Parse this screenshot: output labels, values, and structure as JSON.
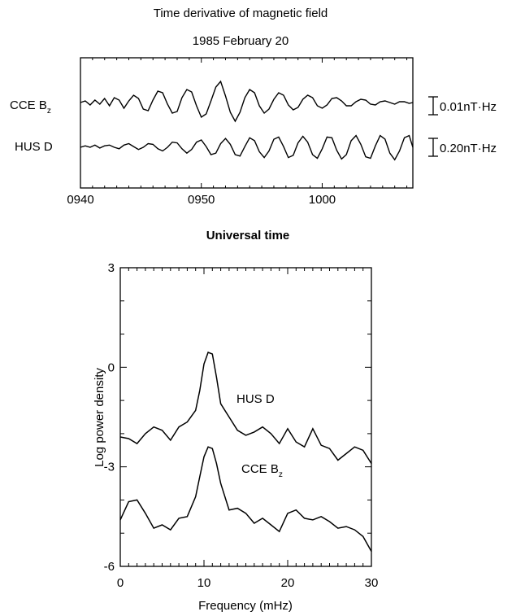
{
  "chart_data": [
    {
      "type": "line",
      "title": "Time derivative of magnetic field",
      "subtitle": "1985 February 20",
      "xlabel": "Universal time",
      "ylabel": "",
      "x_ticks": [
        {
          "value": 0,
          "label": "0940"
        },
        {
          "value": 10,
          "label": "0950"
        },
        {
          "value": 20,
          "label": "1000"
        }
      ],
      "xlim": [
        0,
        27.5
      ],
      "x_unit": "minutes after 0940 UT",
      "series": [
        {
          "name": "CCE Bz",
          "label_main": "CCE B",
          "label_sub": "z",
          "scale_bar": "0.01nT·Hz",
          "x": [
            0,
            0.4,
            0.8,
            1.2,
            1.6,
            2.0,
            2.4,
            2.8,
            3.2,
            3.6,
            4.0,
            4.4,
            4.8,
            5.2,
            5.6,
            6.0,
            6.4,
            6.8,
            7.2,
            7.6,
            8.0,
            8.4,
            8.8,
            9.2,
            9.6,
            10.0,
            10.4,
            10.8,
            11.2,
            11.6,
            12.0,
            12.4,
            12.8,
            13.2,
            13.6,
            14.0,
            14.4,
            14.8,
            15.2,
            15.6,
            16.0,
            16.4,
            16.8,
            17.2,
            17.6,
            18.0,
            18.4,
            18.8,
            19.2,
            19.6,
            20.0,
            20.4,
            20.8,
            21.2,
            21.6,
            22.0,
            22.4,
            22.8,
            23.2,
            23.6,
            24.0,
            24.4,
            24.8,
            25.2,
            25.6,
            26.0,
            26.4,
            26.8,
            27.2,
            27.5
          ],
          "values": [
            0.0,
            0.2,
            -0.3,
            0.3,
            -0.2,
            0.5,
            -0.4,
            0.6,
            0.3,
            -0.7,
            0.2,
            0.9,
            0.5,
            -0.8,
            -1.0,
            0.3,
            1.4,
            1.2,
            -0.2,
            -1.3,
            -1.1,
            0.6,
            1.6,
            1.3,
            -0.4,
            -1.8,
            -1.4,
            0.2,
            1.9,
            2.6,
            0.8,
            -1.2,
            -2.3,
            -1.2,
            0.6,
            1.6,
            1.2,
            -0.4,
            -1.3,
            -0.8,
            0.4,
            1.2,
            0.9,
            -0.3,
            -0.9,
            -0.6,
            0.4,
            0.9,
            0.6,
            -0.4,
            -0.7,
            -0.3,
            0.5,
            0.6,
            0.2,
            -0.4,
            -0.4,
            0.1,
            0.4,
            0.3,
            -0.2,
            -0.3,
            0.1,
            0.2,
            0.0,
            -0.2,
            0.1,
            0.1,
            -0.1,
            0.0
          ]
        },
        {
          "name": "HUS D",
          "label_main": "HUS D",
          "scale_bar": "0.20nT·Hz",
          "x": [
            0,
            0.4,
            0.8,
            1.2,
            1.6,
            2.0,
            2.4,
            2.8,
            3.2,
            3.6,
            4.0,
            4.4,
            4.8,
            5.2,
            5.6,
            6.0,
            6.4,
            6.8,
            7.2,
            7.6,
            8.0,
            8.4,
            8.8,
            9.2,
            9.6,
            10.0,
            10.4,
            10.8,
            11.2,
            11.6,
            12.0,
            12.4,
            12.8,
            13.2,
            13.6,
            14.0,
            14.4,
            14.8,
            15.2,
            15.6,
            16.0,
            16.4,
            16.8,
            17.2,
            17.6,
            18.0,
            18.4,
            18.8,
            19.2,
            19.6,
            20.0,
            20.4,
            20.8,
            21.2,
            21.6,
            22.0,
            22.4,
            22.8,
            23.2,
            23.6,
            24.0,
            24.4,
            24.8,
            25.2,
            25.6,
            26.0,
            26.4,
            26.8,
            27.2,
            27.5
          ],
          "values": [
            0.0,
            0.2,
            0.0,
            0.3,
            -0.1,
            0.2,
            0.3,
            0.0,
            -0.2,
            0.3,
            0.5,
            0.1,
            -0.3,
            0.0,
            0.5,
            0.4,
            -0.2,
            -0.5,
            0.0,
            0.7,
            0.6,
            -0.2,
            -0.8,
            -0.3,
            0.7,
            1.0,
            0.1,
            -1.0,
            -0.8,
            0.5,
            1.2,
            0.4,
            -1.0,
            -1.2,
            0.1,
            1.3,
            0.9,
            -0.6,
            -1.4,
            -0.5,
            1.1,
            1.4,
            0.1,
            -1.4,
            -1.1,
            0.6,
            1.5,
            0.7,
            -1.0,
            -1.5,
            -0.2,
            1.4,
            1.3,
            -0.4,
            -1.6,
            -1.0,
            0.9,
            1.6,
            0.4,
            -1.3,
            -1.5,
            0.2,
            1.6,
            1.1,
            -0.8,
            -1.7,
            -0.5,
            1.3,
            1.6,
            0.0
          ]
        }
      ]
    },
    {
      "type": "line",
      "title": "",
      "xlabel": "Frequency  (mHz)",
      "ylabel": "Log power density",
      "xlim": [
        0,
        30
      ],
      "ylim": [
        -6,
        3
      ],
      "x_ticks": [
        0,
        10,
        20,
        30
      ],
      "y_ticks": [
        -6,
        -3,
        0,
        3
      ],
      "series": [
        {
          "name": "HUS D",
          "label_main": "HUS D",
          "x": [
            0,
            1,
            2,
            3,
            4,
            5,
            6,
            7,
            8,
            9,
            9.5,
            10,
            10.5,
            11,
            11.5,
            12,
            13,
            14,
            15,
            16,
            17,
            18,
            19,
            20,
            21,
            22,
            23,
            24,
            25,
            26,
            27,
            28,
            29,
            30
          ],
          "values": [
            -2.1,
            -2.15,
            -2.3,
            -2.0,
            -1.8,
            -1.9,
            -2.2,
            -1.8,
            -1.65,
            -1.3,
            -0.7,
            0.1,
            0.45,
            0.4,
            -0.3,
            -1.1,
            -1.5,
            -1.9,
            -2.05,
            -1.95,
            -1.8,
            -2.0,
            -2.3,
            -1.85,
            -2.25,
            -2.4,
            -1.85,
            -2.35,
            -2.45,
            -2.8,
            -2.6,
            -2.4,
            -2.5,
            -2.9
          ]
        },
        {
          "name": "CCE Bz",
          "label_main": "CCE B",
          "label_sub": "z",
          "x": [
            0,
            1,
            2,
            3,
            4,
            5,
            6,
            7,
            8,
            9,
            9.5,
            10,
            10.5,
            11,
            11.5,
            12,
            13,
            14,
            15,
            16,
            17,
            18,
            19,
            20,
            21,
            22,
            23,
            24,
            25,
            26,
            27,
            28,
            29,
            30
          ],
          "values": [
            -4.6,
            -4.05,
            -4.0,
            -4.4,
            -4.85,
            -4.75,
            -4.9,
            -4.55,
            -4.5,
            -3.9,
            -3.3,
            -2.7,
            -2.4,
            -2.45,
            -2.9,
            -3.5,
            -4.3,
            -4.25,
            -4.4,
            -4.7,
            -4.55,
            -4.75,
            -4.95,
            -4.4,
            -4.3,
            -4.55,
            -4.6,
            -4.5,
            -4.65,
            -4.85,
            -4.8,
            -4.9,
            -5.1,
            -5.55
          ]
        }
      ]
    }
  ]
}
